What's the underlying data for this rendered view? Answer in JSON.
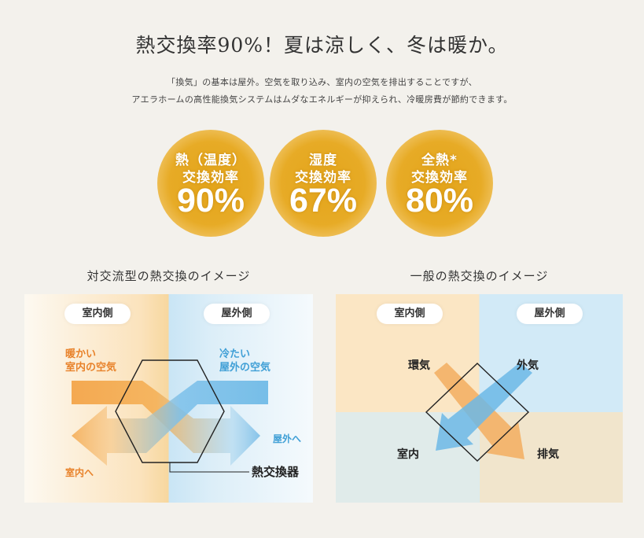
{
  "header": {
    "title": "熱交換率90%！夏は涼しく、冬は暖か。",
    "desc_line1": "「換気」の基本は屋外。空気を取り込み、室内の空気を排出することですが、",
    "desc_line2": "アエラホームの高性能換気システムはムダなエネルギーが抑えられ、冷暖房費が節約できます。"
  },
  "badges": [
    {
      "line1": "熱（温度）",
      "line2": "交換効率",
      "value": "90%"
    },
    {
      "line1": "湿度",
      "line2": "交換効率",
      "value": "67%"
    },
    {
      "line1": "全熱*",
      "line2": "交換効率",
      "value": "80%"
    }
  ],
  "diagram1": {
    "title": "対交流型の熱交換のイメージ",
    "indoor": "室内側",
    "outdoor": "屋外側",
    "warm_air_line1": "暖かい",
    "warm_air_line2": "室内の空気",
    "cold_air_line1": "冷たい",
    "cold_air_line2": "屋外の空気",
    "to_outdoor": "屋外へ",
    "to_indoor": "室内へ",
    "exchanger": "熱交換器"
  },
  "diagram2": {
    "title": "一般の熱交換のイメージ",
    "indoor": "室内側",
    "outdoor": "屋外側",
    "return_air": "環気",
    "outside_air": "外気",
    "indoor_label": "室内",
    "exhaust": "排気"
  },
  "colors": {
    "background": "#f3f1ec",
    "badge": "#e6a820",
    "warm_orange": "#f0a040",
    "cool_blue": "#5aaee0",
    "orange_text": "#e8822a",
    "blue_text": "#3f9fd6"
  }
}
